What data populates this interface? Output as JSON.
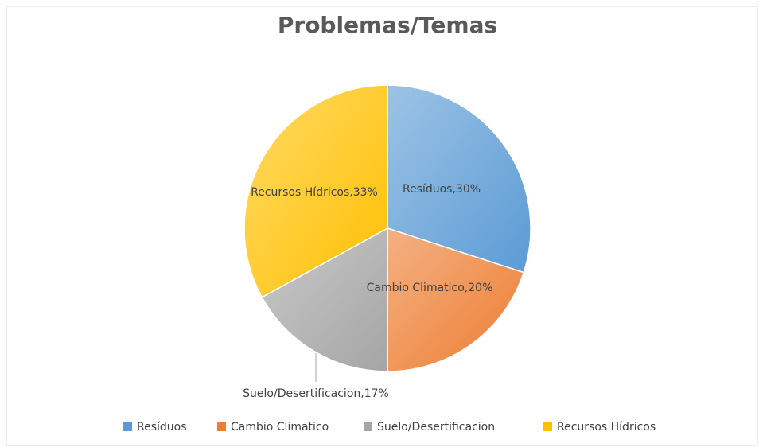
{
  "chart_data": {
    "type": "pie",
    "title": "Problemas/Temas",
    "categories": [
      "Resíduos",
      "Cambio Climatico",
      "Suelo/Desertificacion",
      "Recursos Hídricos"
    ],
    "values": [
      30,
      20,
      17,
      33
    ],
    "value_labels": [
      "Resíduos,30%",
      "Cambio Climatico,20%",
      "Suelo/Desertificacion,17%",
      "Recursos Hídricos,33%"
    ],
    "colors": [
      "#5b9bd5",
      "#ed7d31",
      "#a5a5a5",
      "#ffc000"
    ],
    "legend": "bottom"
  }
}
